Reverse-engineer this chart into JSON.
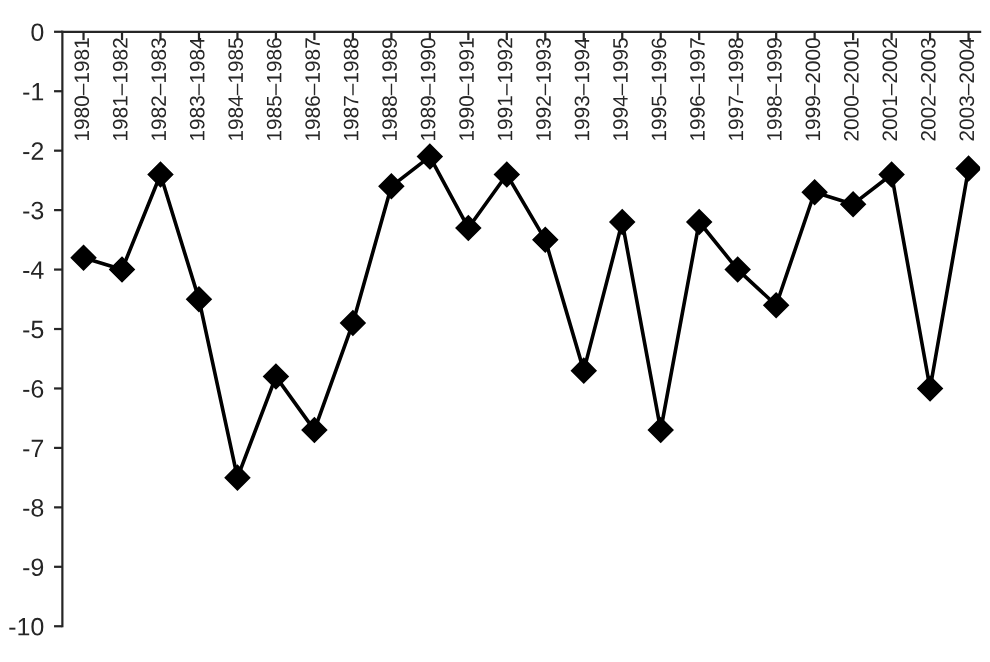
{
  "chart_data": {
    "type": "line",
    "categories": [
      "1980–1981",
      "1981–1982",
      "1982–1983",
      "1983–1984",
      "1984–1985",
      "1985–1986",
      "1986–1987",
      "1987–1988",
      "1988–1989",
      "1989–1990",
      "1990–1991",
      "1991–1992",
      "1992–1993",
      "1993–1994",
      "1994–1995",
      "1995–1996",
      "1996–1997",
      "1997–1998",
      "1998–1999",
      "1999–2000",
      "2000–2001",
      "2001–2002",
      "2002–2003",
      "2003–2004"
    ],
    "series": [
      {
        "color": "#000000",
        "values": [
          -3.8,
          -4.0,
          -2.4,
          -4.5,
          -7.5,
          -5.8,
          -6.7,
          -4.9,
          -2.6,
          -2.1,
          -3.3,
          -2.4,
          -3.5,
          -5.7,
          -3.2,
          -6.7,
          -3.2,
          -4.0,
          -4.6,
          -2.7,
          -2.9,
          -2.4,
          -6.0,
          -2.3
        ]
      }
    ],
    "ylim": [
      -10,
      0
    ],
    "yticks": [
      0,
      {
        "value": -1,
        "label": "-1"
      },
      {
        "value": -2,
        "label": "-2"
      },
      {
        "value": -3,
        "label": "-3"
      },
      {
        "value": -4,
        "label": "-4"
      },
      {
        "value": -5,
        "label": "-5"
      },
      {
        "value": -6,
        "label": "-6"
      },
      {
        "value": -7,
        "label": "-7"
      },
      {
        "value": -8,
        "label": "-8"
      },
      {
        "value": -9,
        "label": "-9"
      },
      {
        "value": -10,
        "label": "-10"
      }
    ],
    "marker": "diamond",
    "line_style": "solid",
    "grid": false
  }
}
